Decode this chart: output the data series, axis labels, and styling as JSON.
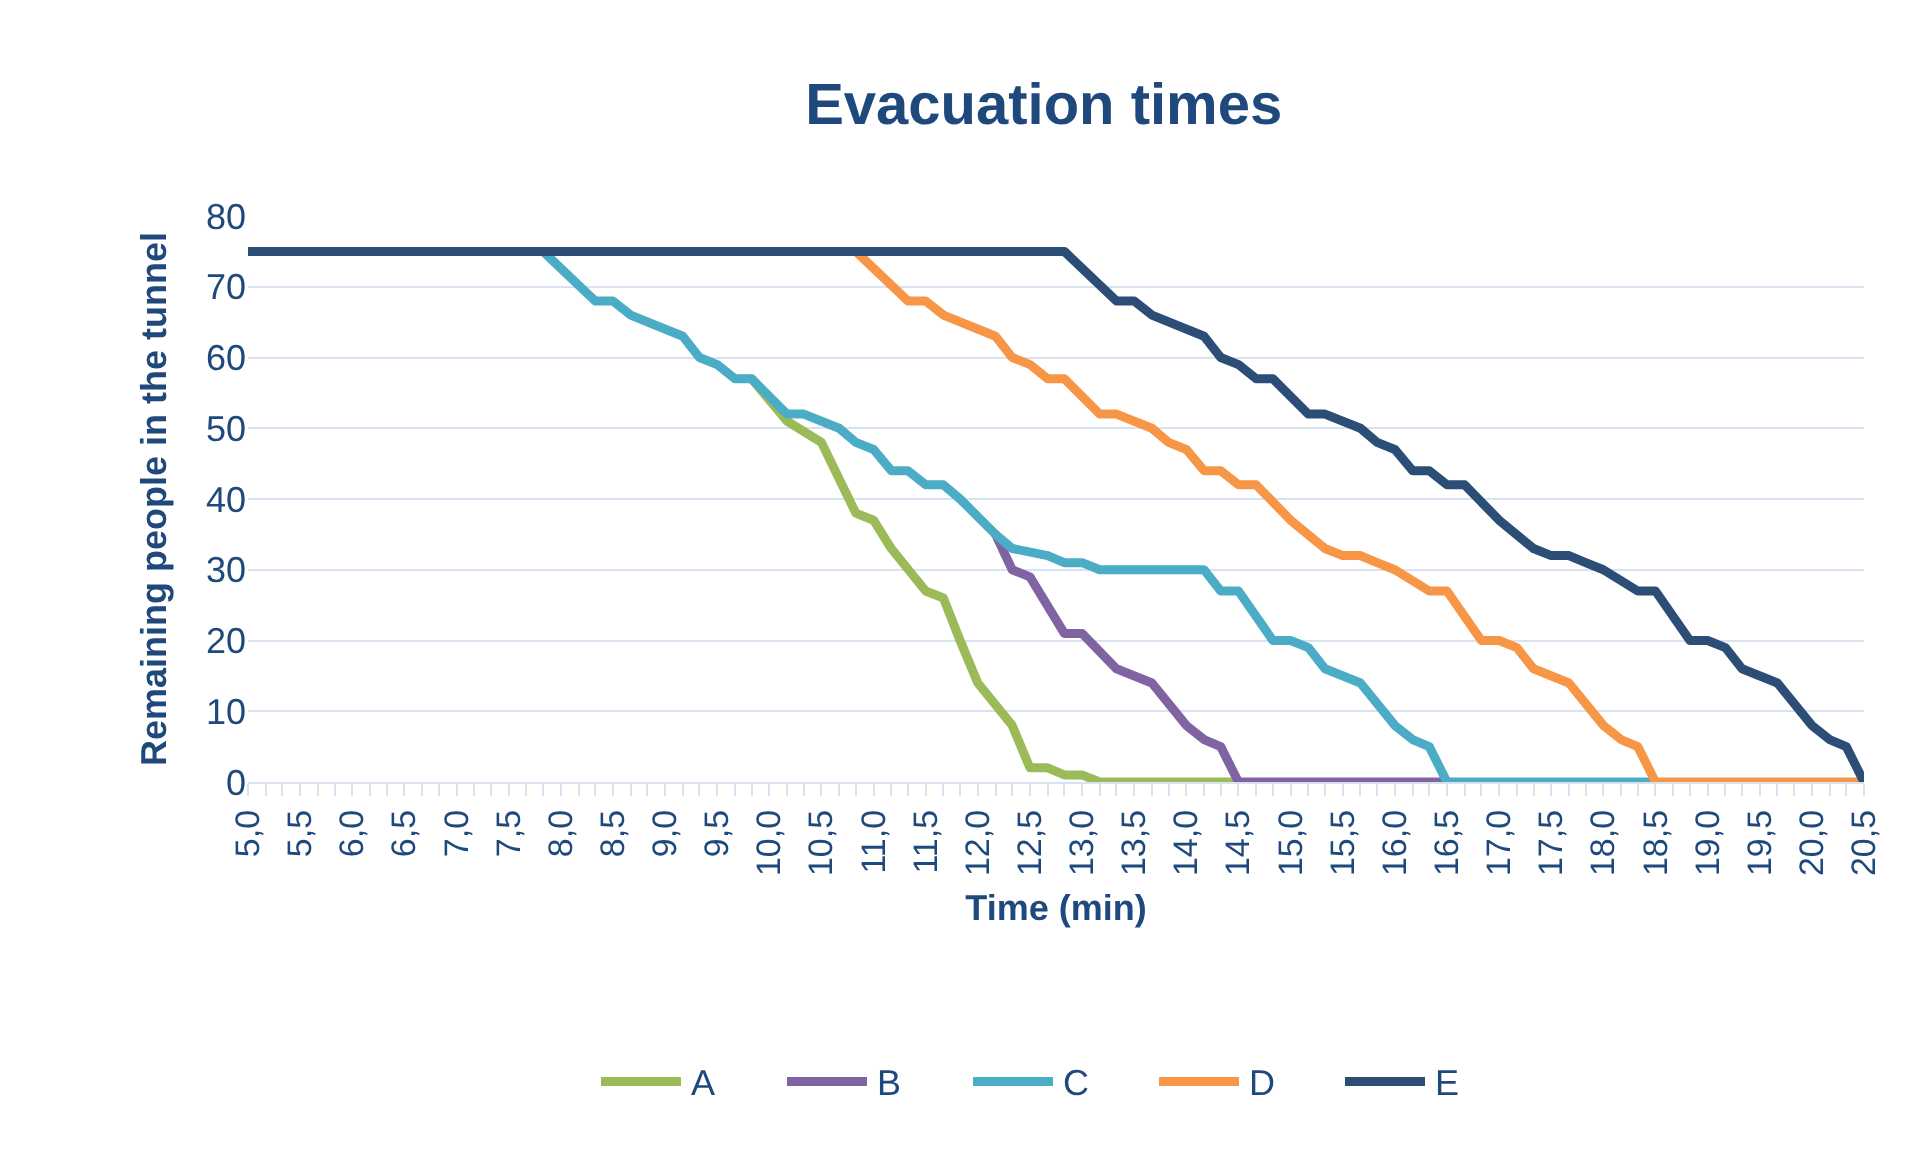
{
  "chart_data": {
    "type": "line",
    "title": "Evacuation times",
    "xlabel": "Time (min)",
    "ylabel": "Remaining people in the tunnel",
    "series": [
      {
        "name": "A",
        "color": "#9bbb59",
        "x": [
          9.83,
          10.17,
          10.5,
          10.83,
          11,
          11.17,
          11.5,
          11.67,
          11.83,
          12,
          12.33,
          12.5,
          12.67,
          12.83,
          13,
          13.17,
          14.5
        ],
        "values": [
          57,
          51,
          48,
          38,
          37,
          33,
          27,
          26,
          20,
          14,
          8,
          2,
          2,
          1,
          1,
          0,
          0
        ]
      },
      {
        "name": "B",
        "color": "#8064a2",
        "x": [
          12.17,
          12.33,
          12.5,
          12.83,
          13,
          13.33,
          13.67,
          14,
          14.17,
          14.33,
          14.5,
          16.5
        ],
        "values": [
          35,
          30,
          29,
          21,
          21,
          16,
          14,
          8,
          6,
          5,
          0,
          0
        ]
      },
      {
        "name": "C",
        "color": "#4bacc6",
        "x": [
          7.83,
          8.33,
          8.5,
          8.67,
          9.17,
          9.33,
          9.5,
          9.67,
          9.83,
          10.17,
          10.33,
          10.67,
          10.83,
          11,
          11.17,
          11.33,
          11.5,
          11.67,
          11.83,
          12.17,
          12.33,
          12.67,
          12.83,
          13,
          13.17,
          14.17,
          14.33,
          14.5,
          14.83,
          15,
          15.17,
          15.33,
          15.67,
          16,
          16.17,
          16.33,
          16.5,
          18.5
        ],
        "values": [
          75,
          68,
          68,
          66,
          63,
          60,
          59,
          57,
          57,
          52,
          52,
          50,
          48,
          47,
          44,
          44,
          42,
          42,
          40,
          35,
          33,
          32,
          31,
          31,
          30,
          30,
          27,
          27,
          20,
          20,
          19,
          16,
          14,
          8,
          6,
          5,
          0,
          0
        ]
      },
      {
        "name": "D",
        "color": "#f79646",
        "x": [
          10.83,
          11.33,
          11.5,
          11.67,
          12.17,
          12.33,
          12.5,
          12.67,
          12.83,
          13.17,
          13.33,
          13.67,
          13.83,
          14,
          14.17,
          14.33,
          14.5,
          14.67,
          15,
          15.33,
          15.5,
          15.67,
          15.83,
          16,
          16.33,
          16.5,
          16.83,
          17,
          17.17,
          17.33,
          17.67,
          18,
          18.17,
          18.33,
          18.5,
          20.5
        ],
        "values": [
          75,
          68,
          68,
          66,
          63,
          60,
          59,
          57,
          57,
          52,
          52,
          50,
          48,
          47,
          44,
          44,
          42,
          42,
          37,
          33,
          32,
          32,
          31,
          30,
          27,
          27,
          20,
          20,
          19,
          16,
          14,
          8,
          6,
          5,
          0,
          0
        ]
      },
      {
        "name": "E",
        "color": "#2c4d75",
        "x": [
          5,
          12.83,
          13.33,
          13.5,
          13.67,
          14.17,
          14.33,
          14.5,
          14.67,
          14.83,
          15.17,
          15.33,
          15.67,
          15.83,
          16,
          16.17,
          16.33,
          16.5,
          16.67,
          17,
          17.33,
          17.5,
          17.67,
          17.83,
          18,
          18.33,
          18.5,
          18.83,
          19,
          19.17,
          19.33,
          19.67,
          20,
          20.17,
          20.33,
          20.5
        ],
        "values": [
          75,
          75,
          68,
          68,
          66,
          63,
          60,
          59,
          57,
          57,
          52,
          52,
          50,
          48,
          47,
          44,
          44,
          42,
          42,
          37,
          33,
          32,
          32,
          31,
          30,
          27,
          27,
          20,
          20,
          19,
          16,
          14,
          8,
          6,
          5,
          0
        ]
      }
    ],
    "xlim": [
      5,
      20.5
    ],
    "xticks": [
      {
        "value": 5,
        "label": "5,0"
      },
      {
        "value": 5.17,
        "label": null
      },
      {
        "value": 5.33,
        "label": null
      },
      {
        "value": 5.5,
        "label": "5,5"
      },
      {
        "value": 5.67,
        "label": null
      },
      {
        "value": 5.83,
        "label": null
      },
      {
        "value": 6,
        "label": "6,0"
      },
      {
        "value": 6.17,
        "label": null
      },
      {
        "value": 6.33,
        "label": null
      },
      {
        "value": 6.5,
        "label": "6,5"
      },
      {
        "value": 6.67,
        "label": null
      },
      {
        "value": 6.83,
        "label": null
      },
      {
        "value": 7,
        "label": "7,0"
      },
      {
        "value": 7.17,
        "label": null
      },
      {
        "value": 7.33,
        "label": null
      },
      {
        "value": 7.5,
        "label": "7,5"
      },
      {
        "value": 7.67,
        "label": null
      },
      {
        "value": 7.83,
        "label": null
      },
      {
        "value": 8,
        "label": "8,0"
      },
      {
        "value": 8.17,
        "label": null
      },
      {
        "value": 8.33,
        "label": null
      },
      {
        "value": 8.5,
        "label": "8,5"
      },
      {
        "value": 8.67,
        "label": null
      },
      {
        "value": 8.83,
        "label": null
      },
      {
        "value": 9,
        "label": "9,0"
      },
      {
        "value": 9.17,
        "label": null
      },
      {
        "value": 9.33,
        "label": null
      },
      {
        "value": 9.5,
        "label": "9,5"
      },
      {
        "value": 9.67,
        "label": null
      },
      {
        "value": 9.83,
        "label": null
      },
      {
        "value": 10,
        "label": "10,0"
      },
      {
        "value": 10.17,
        "label": null
      },
      {
        "value": 10.33,
        "label": null
      },
      {
        "value": 10.5,
        "label": "10,5"
      },
      {
        "value": 10.67,
        "label": null
      },
      {
        "value": 10.83,
        "label": null
      },
      {
        "value": 11,
        "label": "11,0"
      },
      {
        "value": 11.17,
        "label": null
      },
      {
        "value": 11.33,
        "label": null
      },
      {
        "value": 11.5,
        "label": "11,5"
      },
      {
        "value": 11.67,
        "label": null
      },
      {
        "value": 11.83,
        "label": null
      },
      {
        "value": 12,
        "label": "12,0"
      },
      {
        "value": 12.17,
        "label": null
      },
      {
        "value": 12.33,
        "label": null
      },
      {
        "value": 12.5,
        "label": "12,5"
      },
      {
        "value": 12.67,
        "label": null
      },
      {
        "value": 12.83,
        "label": null
      },
      {
        "value": 13,
        "label": "13,0"
      },
      {
        "value": 13.17,
        "label": null
      },
      {
        "value": 13.33,
        "label": null
      },
      {
        "value": 13.5,
        "label": "13,5"
      },
      {
        "value": 13.67,
        "label": null
      },
      {
        "value": 13.83,
        "label": null
      },
      {
        "value": 14,
        "label": "14,0"
      },
      {
        "value": 14.17,
        "label": null
      },
      {
        "value": 14.33,
        "label": null
      },
      {
        "value": 14.5,
        "label": "14,5"
      },
      {
        "value": 14.67,
        "label": null
      },
      {
        "value": 14.83,
        "label": null
      },
      {
        "value": 15,
        "label": "15,0"
      },
      {
        "value": 15.17,
        "label": null
      },
      {
        "value": 15.33,
        "label": null
      },
      {
        "value": 15.5,
        "label": "15,5"
      },
      {
        "value": 15.67,
        "label": null
      },
      {
        "value": 15.83,
        "label": null
      },
      {
        "value": 16,
        "label": "16,0"
      },
      {
        "value": 16.17,
        "label": null
      },
      {
        "value": 16.33,
        "label": null
      },
      {
        "value": 16.5,
        "label": "16,5"
      },
      {
        "value": 16.67,
        "label": null
      },
      {
        "value": 16.83,
        "label": null
      },
      {
        "value": 17,
        "label": "17,0"
      },
      {
        "value": 17.17,
        "label": null
      },
      {
        "value": 17.33,
        "label": null
      },
      {
        "value": 17.5,
        "label": "17,5"
      },
      {
        "value": 17.67,
        "label": null
      },
      {
        "value": 17.83,
        "label": null
      },
      {
        "value": 18,
        "label": "18,0"
      },
      {
        "value": 18.17,
        "label": null
      },
      {
        "value": 18.33,
        "label": null
      },
      {
        "value": 18.5,
        "label": "18,5"
      },
      {
        "value": 18.67,
        "label": null
      },
      {
        "value": 18.83,
        "label": null
      },
      {
        "value": 19,
        "label": "19,0"
      },
      {
        "value": 19.17,
        "label": null
      },
      {
        "value": 19.33,
        "label": null
      },
      {
        "value": 19.5,
        "label": "19,5"
      },
      {
        "value": 19.67,
        "label": null
      },
      {
        "value": 19.83,
        "label": null
      },
      {
        "value": 20,
        "label": "20,0"
      },
      {
        "value": 20.17,
        "label": null
      },
      {
        "value": 20.33,
        "label": null
      },
      {
        "value": 20.5,
        "label": "20,5"
      }
    ],
    "ylim": [
      0,
      80
    ],
    "yticks": [
      0,
      10,
      20,
      30,
      40,
      50,
      60,
      70,
      80
    ],
    "grid": "y",
    "legend": "bottom",
    "line_style": "solid"
  }
}
